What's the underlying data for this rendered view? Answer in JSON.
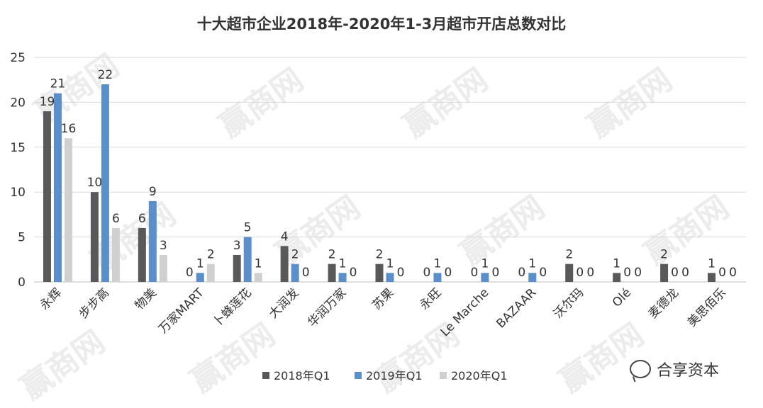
{
  "watermark": "赢商网",
  "brand": {
    "label": "合享资本",
    "icon": "wechat-icon"
  },
  "chart_data": {
    "type": "bar",
    "title": "十大超市企业2018年-2020年1-3月超市开店总数对比",
    "xlabel": "",
    "ylabel": "",
    "ylim": [
      0,
      25
    ],
    "yticks": [
      0,
      5,
      10,
      15,
      20,
      25
    ],
    "grid": true,
    "legend_position": "bottom",
    "categories": [
      "永辉",
      "步步高",
      "物美",
      "万家MART",
      "卜蜂莲花",
      "大润发",
      "华润万家",
      "苏果",
      "永旺",
      "Le Marche",
      "BAZAAR",
      "沃尔玛",
      "Olé",
      "麦德龙",
      "美思佰乐"
    ],
    "series": [
      {
        "name": "2018年Q1",
        "color": "#595959",
        "values": [
          19,
          10,
          6,
          0,
          3,
          4,
          2,
          2,
          0,
          0,
          0,
          2,
          1,
          2,
          1
        ]
      },
      {
        "name": "2019年Q1",
        "color": "#5b8fc9",
        "values": [
          21,
          22,
          9,
          1,
          5,
          2,
          1,
          1,
          1,
          1,
          1,
          0,
          0,
          0,
          0
        ]
      },
      {
        "name": "2020年Q1",
        "color": "#d0d0d0",
        "values": [
          16,
          6,
          3,
          2,
          1,
          0,
          0,
          0,
          0,
          0,
          0,
          0,
          0,
          0,
          0
        ]
      }
    ]
  }
}
